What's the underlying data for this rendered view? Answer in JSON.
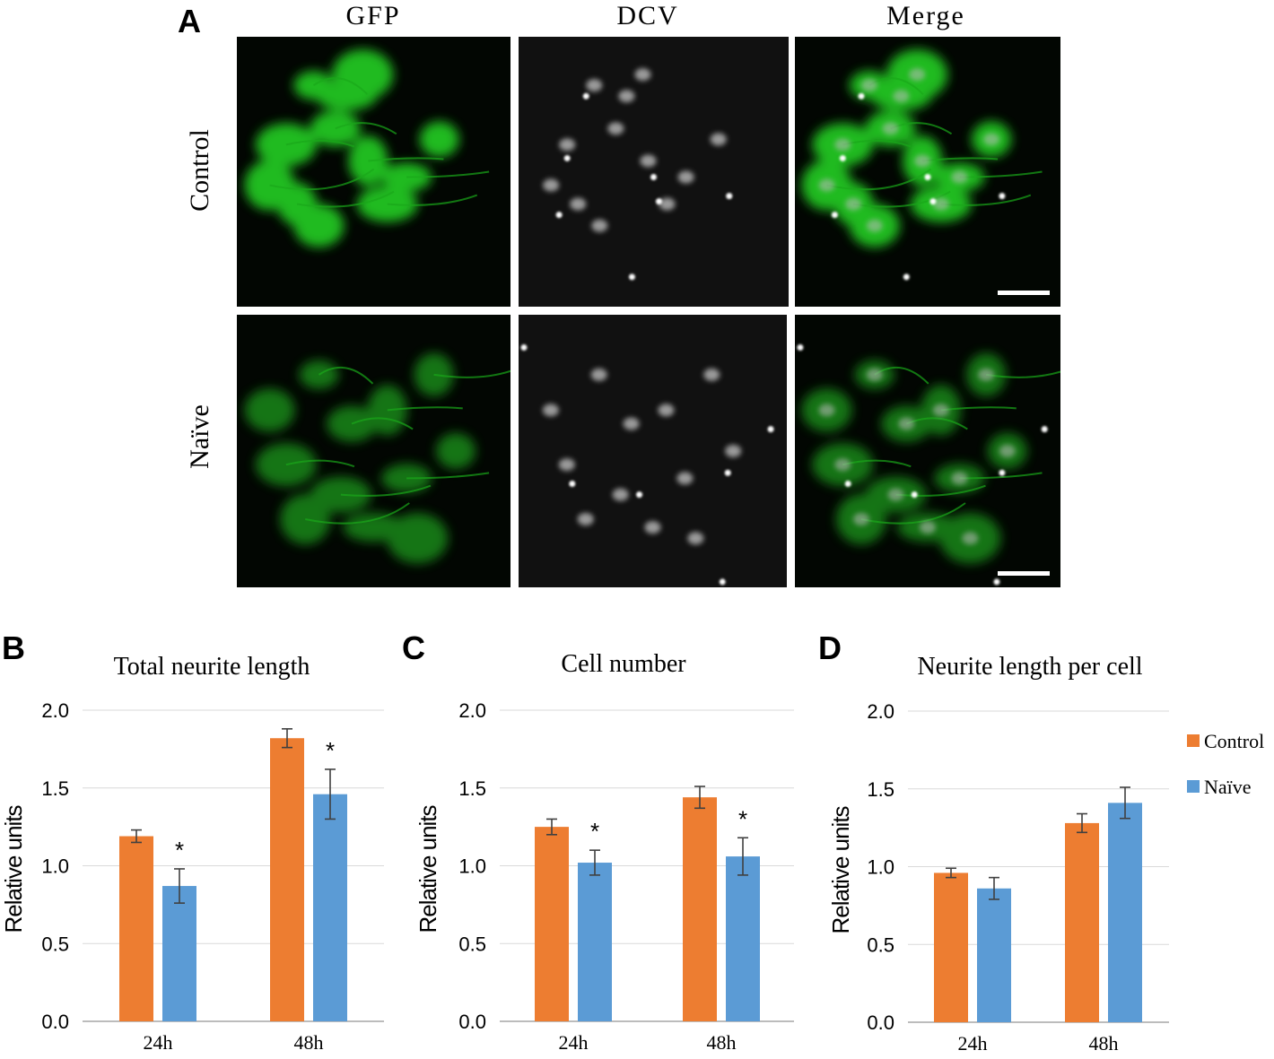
{
  "panel_a": {
    "letter": "A",
    "columns": [
      "GFP",
      "DCV",
      "Merge"
    ],
    "rows": [
      "Control",
      "Naïve"
    ]
  },
  "legend": {
    "placement": "right",
    "entries": [
      {
        "label": "Control",
        "color": "#ed7d31"
      },
      {
        "label": "Naïve",
        "color": "#5b9bd5"
      }
    ]
  },
  "colors": {
    "control": "#ed7d31",
    "naive": "#5b9bd5",
    "gfp": "#1fd41f",
    "dcv": "#cfcfcf"
  },
  "chart_data": [
    {
      "letter": "B",
      "type": "bar",
      "title": "Total neurite length",
      "ylabel": "Relative units",
      "ylim": [
        0,
        2.0
      ],
      "yticks": [
        "0.0",
        "0.5",
        "1.0",
        "1.5",
        "2.0"
      ],
      "grid": true,
      "categories": [
        "24h",
        "48h"
      ],
      "series": [
        {
          "name": "Control",
          "values": [
            1.19,
            1.82
          ],
          "errors": [
            0.04,
            0.06
          ]
        },
        {
          "name": "Naïve",
          "values": [
            0.87,
            1.46
          ],
          "errors": [
            0.11,
            0.16
          ]
        }
      ],
      "significance": [
        [
          "",
          "*"
        ],
        [
          "",
          "*"
        ]
      ]
    },
    {
      "letter": "C",
      "type": "bar",
      "title": "Cell number",
      "ylabel": "Relative units",
      "ylim": [
        0,
        2.0
      ],
      "yticks": [
        "0.0",
        "0.5",
        "1.0",
        "1.5",
        "2.0"
      ],
      "grid": true,
      "categories": [
        "24h",
        "48h"
      ],
      "series": [
        {
          "name": "Control",
          "values": [
            1.25,
            1.44
          ],
          "errors": [
            0.05,
            0.07
          ]
        },
        {
          "name": "Naïve",
          "values": [
            1.02,
            1.06
          ],
          "errors": [
            0.08,
            0.12
          ]
        }
      ],
      "significance": [
        [
          "",
          "*"
        ],
        [
          "",
          "*"
        ]
      ]
    },
    {
      "letter": "D",
      "type": "bar",
      "title": "Neurite length per cell",
      "ylabel": "Relative units",
      "ylim": [
        0,
        2.0
      ],
      "yticks": [
        "0.0",
        "0.5",
        "1.0",
        "1.5",
        "2.0"
      ],
      "grid": true,
      "categories": [
        "24h",
        "48h"
      ],
      "series": [
        {
          "name": "Control",
          "values": [
            0.96,
            1.28
          ],
          "errors": [
            0.03,
            0.06
          ]
        },
        {
          "name": "Naïve",
          "values": [
            0.86,
            1.41
          ],
          "errors": [
            0.07,
            0.1
          ]
        }
      ],
      "significance": [
        [
          "",
          ""
        ],
        [
          "",
          ""
        ]
      ]
    }
  ]
}
